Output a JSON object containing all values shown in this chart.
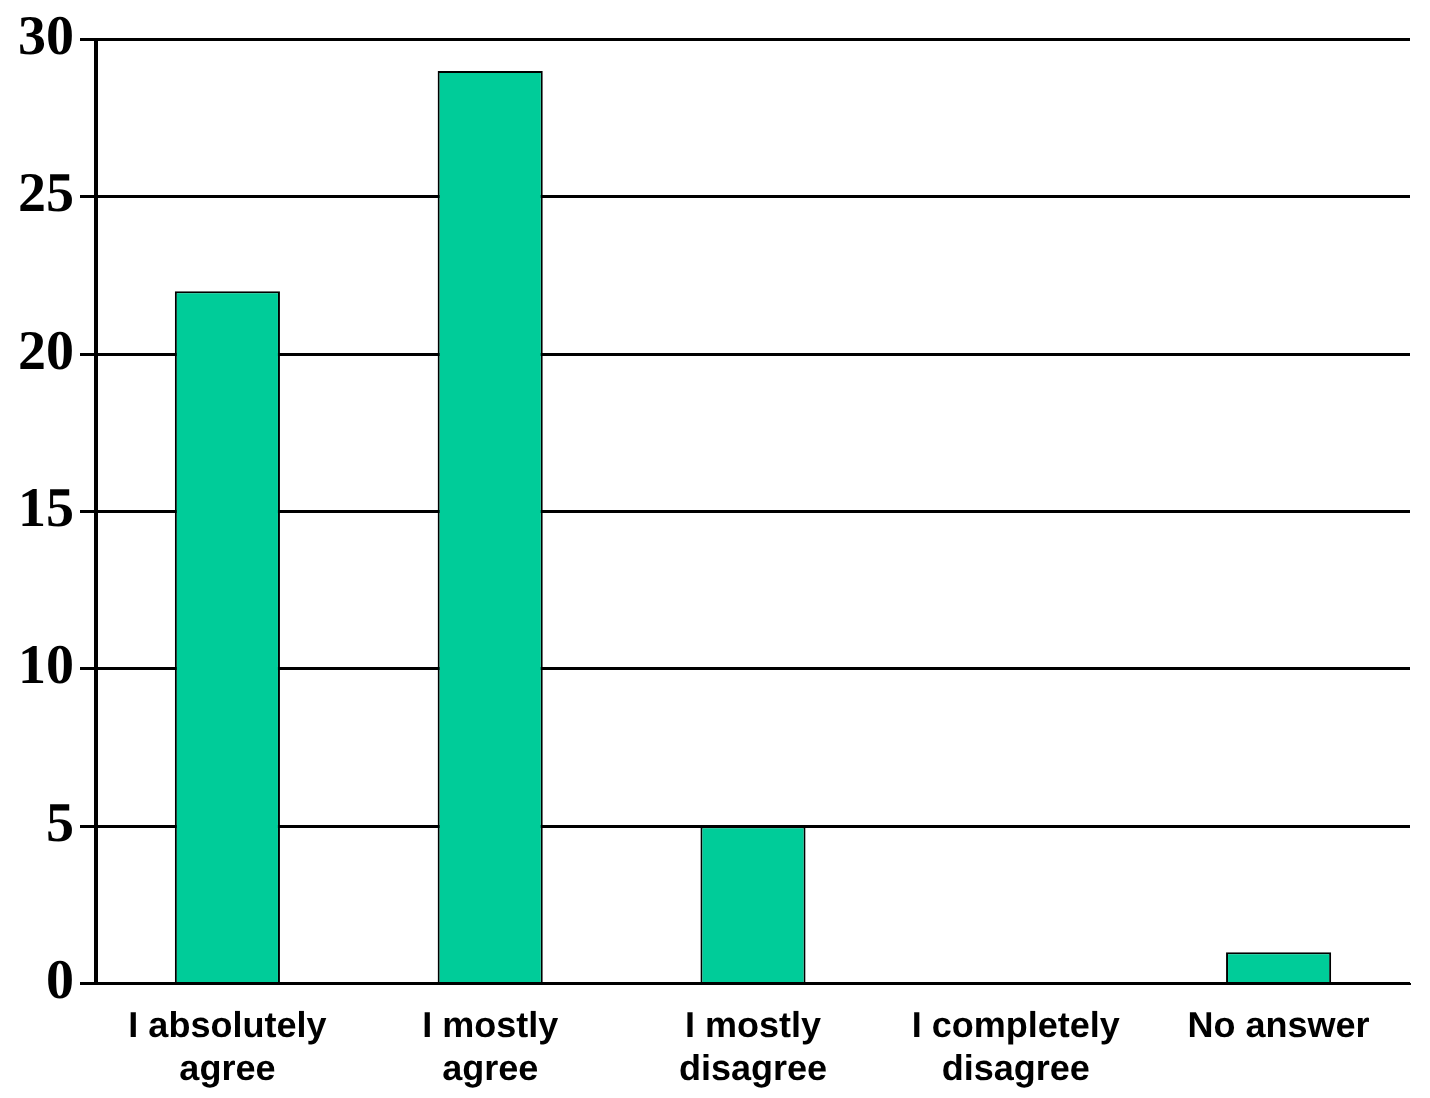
{
  "chart_data": {
    "type": "bar",
    "categories": [
      "I absolutely agree",
      "I mostly agree",
      "I mostly disagree",
      "I completely disagree",
      "No answer"
    ],
    "values": [
      22,
      29,
      5,
      0,
      1
    ],
    "color": "#00cc99",
    "ylim": [
      0,
      30
    ],
    "yticks": [
      0,
      5,
      10,
      15,
      20,
      25,
      30
    ],
    "grid": "y",
    "legend": false
  }
}
